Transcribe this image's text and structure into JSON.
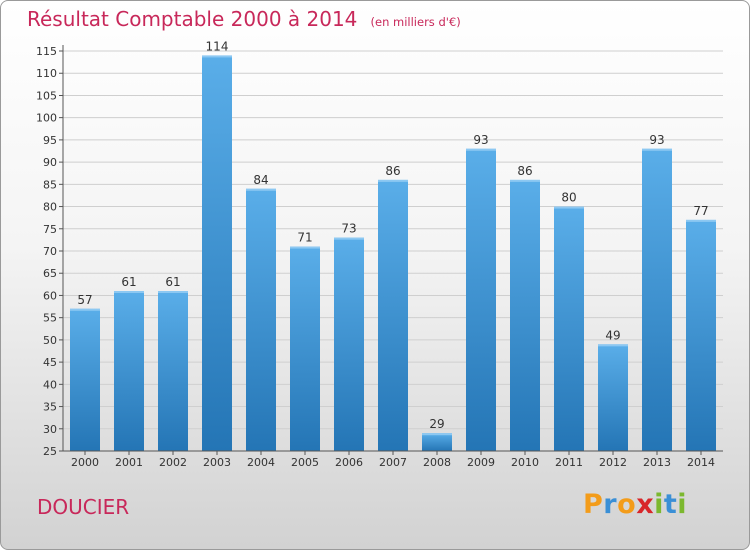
{
  "title": "Résultat Comptable 2000 à 2014",
  "unit_note": "(en milliers d'€)",
  "commune": "DOUCIER",
  "logo": {
    "letters": [
      {
        "char": "P",
        "color": "#f39c1a"
      },
      {
        "char": "r",
        "color": "#3a8fd6"
      },
      {
        "char": "o",
        "color": "#f39c1a"
      },
      {
        "char": "x",
        "color": "#d8262a"
      },
      {
        "char": "i",
        "color": "#7cb82f"
      },
      {
        "char": "t",
        "color": "#3a8fd6"
      },
      {
        "char": "i",
        "color": "#7cb82f"
      }
    ]
  },
  "colors": {
    "title": "#c8285a",
    "bar_top": "#5aaee9",
    "bar_bottom": "#2475b5",
    "axis": "#555555",
    "grid": "#cfcfcf"
  },
  "chart_data": {
    "type": "bar",
    "title": "Résultat Comptable 2000 à 2014",
    "xlabel": "",
    "ylabel": "",
    "categories": [
      "2000",
      "2001",
      "2002",
      "2003",
      "2004",
      "2005",
      "2006",
      "2007",
      "2008",
      "2009",
      "2010",
      "2011",
      "2012",
      "2013",
      "2014"
    ],
    "values": [
      57,
      61,
      61,
      114,
      84,
      71,
      73,
      86,
      29,
      93,
      86,
      80,
      49,
      93,
      77
    ],
    "ylim": [
      25,
      115
    ],
    "yticks": [
      25,
      30,
      35,
      40,
      45,
      50,
      55,
      60,
      65,
      70,
      75,
      80,
      85,
      90,
      95,
      100,
      105,
      110,
      115
    ],
    "grid": true
  }
}
